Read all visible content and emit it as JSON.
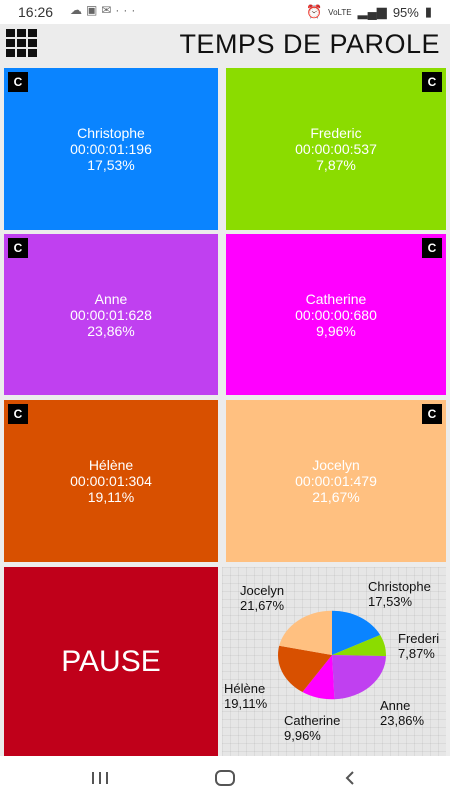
{
  "status_bar": {
    "time": "16:26",
    "icons": [
      "cloud-icon",
      "gallery-icon",
      "mail-icon",
      "more-icon"
    ],
    "battery": "95%",
    "network": "VoLTE"
  },
  "header": {
    "title": "TEMPS DE PAROLE"
  },
  "speakers": [
    {
      "name": "Christophe",
      "time": "00:00:01:196",
      "pct": "17,53%",
      "color": "#0a84ff",
      "c_label": "C"
    },
    {
      "name": "Frederic",
      "time": "00:00:00:537",
      "pct": "7,87%",
      "color": "#8bdc00",
      "c_label": "C"
    },
    {
      "name": "Anne",
      "time": "00:00:01:628",
      "pct": "23,86%",
      "color": "#c040f0",
      "c_label": "C"
    },
    {
      "name": "Catherine",
      "time": "00:00:00:680",
      "pct": "9,96%",
      "color": "#ff00ff",
      "c_label": "C"
    },
    {
      "name": "Hélène",
      "time": "00:00:01:304",
      "pct": "19,11%",
      "color": "#d85000",
      "c_label": "C"
    },
    {
      "name": "Jocelyn",
      "time": "00:00:01:479",
      "pct": "21,67%",
      "color": "#ffc080",
      "c_label": "C"
    }
  ],
  "pause_label": "PAUSE",
  "chart_data": {
    "type": "pie",
    "labels": [
      "Christophe",
      "Frederic",
      "Anne",
      "Catherine",
      "Hélène",
      "Jocelyn"
    ],
    "values": [
      17.53,
      7.87,
      23.86,
      9.96,
      19.11,
      21.67
    ],
    "value_labels": [
      "17,53%",
      "7,87%",
      "23,86%",
      "9,96%",
      "19,11%",
      "21,67%"
    ],
    "colors": [
      "#0a84ff",
      "#8bdc00",
      "#c040f0",
      "#ff00ff",
      "#d85000",
      "#ffc080"
    ],
    "display_labels": [
      "Christophe",
      "Frederi",
      "Anne",
      "Catherine",
      "Hélène",
      "Jocelyn"
    ]
  },
  "navbar": {
    "buttons": [
      "recent-apps-icon",
      "home-icon",
      "back-icon"
    ]
  }
}
